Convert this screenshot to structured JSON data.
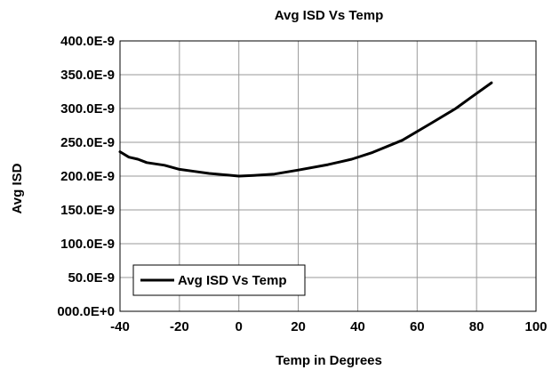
{
  "chart_data": {
    "type": "line",
    "title": "Avg ISD Vs Temp",
    "xlabel": "Temp in Degrees",
    "ylabel": "Avg ISD",
    "xlim": [
      -40,
      100
    ],
    "ylim": [
      0,
      4e-07
    ],
    "x_ticks": [
      -40,
      -20,
      0,
      20,
      40,
      60,
      80,
      100
    ],
    "x_tick_labels": [
      "-40",
      "-20",
      "0",
      "20",
      "40",
      "60",
      "80",
      "100"
    ],
    "y_ticks": [
      0,
      5e-08,
      1e-07,
      1.5e-07,
      2e-07,
      2.5e-07,
      3e-07,
      3.5e-07,
      4e-07
    ],
    "y_tick_labels": [
      "000.0E+0",
      "50.0E-9",
      "100.0E-9",
      "150.0E-9",
      "200.0E-9",
      "250.0E-9",
      "300.0E-9",
      "350.0E-9",
      "400.0E-9"
    ],
    "grid": true,
    "legend_position": "bottom-left",
    "series": [
      {
        "name": "Avg ISD Vs Temp",
        "color": "#000000",
        "x": [
          -40,
          -37,
          -34,
          -31,
          -28,
          -25,
          -20,
          -15,
          -10,
          -5,
          0,
          5,
          12,
          20,
          30,
          38,
          45,
          55,
          65,
          73,
          78,
          85
        ],
        "y": [
          2.36e-07,
          2.28e-07,
          2.25e-07,
          2.2e-07,
          2.18e-07,
          2.16e-07,
          2.1e-07,
          2.07e-07,
          2.04e-07,
          2.02e-07,
          2e-07,
          2.01e-07,
          2.03e-07,
          2.09e-07,
          2.17e-07,
          2.25e-07,
          2.35e-07,
          2.53e-07,
          2.79e-07,
          3e-07,
          3.16e-07,
          3.38e-07
        ]
      }
    ]
  }
}
